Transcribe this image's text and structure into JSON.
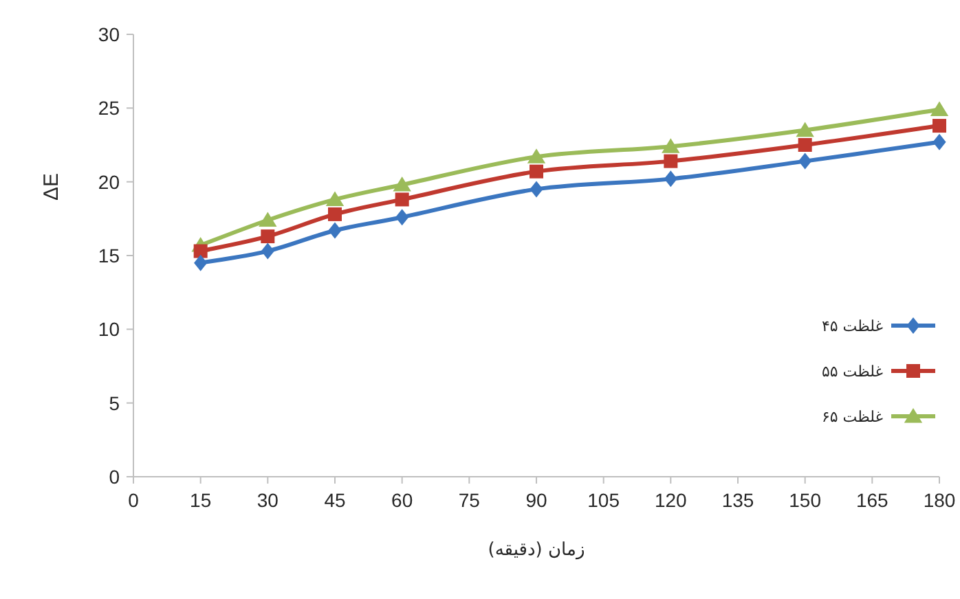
{
  "chart_data": {
    "type": "line",
    "xlabel": "زمان (دقیقه)",
    "ylabel": "ΔE",
    "x": [
      15,
      30,
      45,
      60,
      90,
      120,
      150,
      180
    ],
    "series": [
      {
        "name": "غلظت ۴۵",
        "color": "#3b76c0",
        "marker": "diamond",
        "values": [
          14.5,
          15.3,
          16.7,
          17.6,
          19.5,
          20.2,
          21.4,
          22.7
        ]
      },
      {
        "name": "غلظت ۵۵",
        "color": "#c0392f",
        "marker": "square",
        "values": [
          15.3,
          16.3,
          17.8,
          18.8,
          20.7,
          21.4,
          22.5,
          23.8
        ]
      },
      {
        "name": "غلظت ۶۵",
        "color": "#9bbb59",
        "marker": "triangle",
        "values": [
          15.7,
          17.4,
          18.8,
          19.8,
          21.7,
          22.4,
          23.5,
          24.9
        ]
      }
    ],
    "xlim": [
      0,
      180
    ],
    "xticks": [
      0,
      15,
      30,
      45,
      60,
      75,
      90,
      105,
      120,
      135,
      150,
      165,
      180
    ],
    "ylim": [
      0,
      30
    ],
    "yticks": [
      0,
      5,
      10,
      15,
      20,
      25,
      30
    ],
    "grid": false,
    "legend": "right",
    "line_style": "solid"
  }
}
